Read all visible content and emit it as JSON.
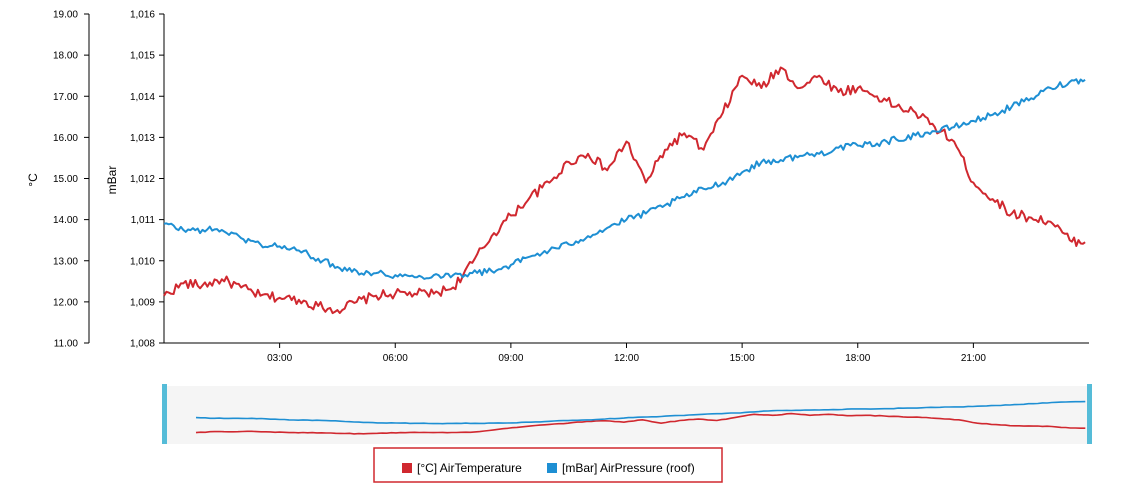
{
  "chart_data": {
    "type": "line",
    "x": {
      "label": "",
      "range_hours": [
        0,
        24
      ],
      "ticks": [
        {
          "h": 3,
          "label": "03:00"
        },
        {
          "h": 6,
          "label": "06:00"
        },
        {
          "h": 9,
          "label": "09:00"
        },
        {
          "h": 12,
          "label": "12:00"
        },
        {
          "h": 15,
          "label": "15:00"
        },
        {
          "h": 18,
          "label": "18:00"
        },
        {
          "h": 21,
          "label": "21:00"
        }
      ]
    },
    "y_left": {
      "label": "°C",
      "range": [
        11,
        19
      ],
      "ticks": [
        "11.00",
        "12.00",
        "13.00",
        "14.00",
        "15.00",
        "16.00",
        "17.00",
        "18.00",
        "19.00"
      ]
    },
    "y_right": {
      "label": "mBar",
      "range": [
        1008,
        1016
      ],
      "ticks": [
        "1,008",
        "1,009",
        "1,010",
        "1,011",
        "1,012",
        "1,013",
        "1,014",
        "1,015",
        "1,016"
      ]
    },
    "series": [
      {
        "name": "[°C] AirTemperature",
        "axis": "left",
        "color": "#d0282f",
        "points": [
          [
            0,
            12.15
          ],
          [
            0.5,
            12.45
          ],
          [
            1,
            12.4
          ],
          [
            1.5,
            12.55
          ],
          [
            2,
            12.35
          ],
          [
            2.5,
            12.15
          ],
          [
            3,
            12.1
          ],
          [
            3.5,
            12.05
          ],
          [
            4,
            11.9
          ],
          [
            4.5,
            11.8
          ],
          [
            5,
            12.0
          ],
          [
            5.5,
            12.15
          ],
          [
            6,
            12.2
          ],
          [
            6.5,
            12.2
          ],
          [
            7,
            12.2
          ],
          [
            7.5,
            12.35
          ],
          [
            8,
            12.95
          ],
          [
            8.5,
            13.6
          ],
          [
            9,
            14.1
          ],
          [
            9.5,
            14.55
          ],
          [
            10,
            14.9
          ],
          [
            10.5,
            15.4
          ],
          [
            11,
            15.6
          ],
          [
            11.5,
            15.2
          ],
          [
            12,
            15.9
          ],
          [
            12.5,
            14.9
          ],
          [
            13,
            15.7
          ],
          [
            13.5,
            16.1
          ],
          [
            14,
            15.7
          ],
          [
            14.5,
            16.6
          ],
          [
            15,
            17.5
          ],
          [
            15.5,
            17.2
          ],
          [
            16,
            17.7
          ],
          [
            16.5,
            17.2
          ],
          [
            17,
            17.5
          ],
          [
            17.5,
            17.1
          ],
          [
            18,
            17.2
          ],
          [
            18.5,
            17.0
          ],
          [
            19,
            16.75
          ],
          [
            19.5,
            16.6
          ],
          [
            20,
            16.25
          ],
          [
            20.5,
            15.9
          ],
          [
            21,
            14.9
          ],
          [
            21.5,
            14.5
          ],
          [
            22,
            14.15
          ],
          [
            22.5,
            14.05
          ],
          [
            23,
            13.95
          ],
          [
            23.5,
            13.5
          ],
          [
            23.9,
            13.45
          ]
        ]
      },
      {
        "name": "[mBar] AirPressure (roof)",
        "axis": "right",
        "color": "#1e8fd3",
        "points": [
          [
            0,
            1010.9
          ],
          [
            0.5,
            1010.75
          ],
          [
            1,
            1010.75
          ],
          [
            1.5,
            1010.75
          ],
          [
            2,
            1010.55
          ],
          [
            2.5,
            1010.4
          ],
          [
            3,
            1010.35
          ],
          [
            3.5,
            1010.25
          ],
          [
            4,
            1010.05
          ],
          [
            4.5,
            1009.85
          ],
          [
            5,
            1009.75
          ],
          [
            5.5,
            1009.7
          ],
          [
            6,
            1009.65
          ],
          [
            6.5,
            1009.6
          ],
          [
            7,
            1009.65
          ],
          [
            7.5,
            1009.65
          ],
          [
            8,
            1009.7
          ],
          [
            8.5,
            1009.75
          ],
          [
            9,
            1009.9
          ],
          [
            9.5,
            1010.1
          ],
          [
            10,
            1010.25
          ],
          [
            10.5,
            1010.4
          ],
          [
            11,
            1010.6
          ],
          [
            11.5,
            1010.8
          ],
          [
            12,
            1011.0
          ],
          [
            12.5,
            1011.15
          ],
          [
            13,
            1011.35
          ],
          [
            13.5,
            1011.55
          ],
          [
            14,
            1011.75
          ],
          [
            14.5,
            1011.9
          ],
          [
            15,
            1012.15
          ],
          [
            15.5,
            1012.4
          ],
          [
            16,
            1012.45
          ],
          [
            16.5,
            1012.55
          ],
          [
            17,
            1012.6
          ],
          [
            17.5,
            1012.75
          ],
          [
            18,
            1012.8
          ],
          [
            18.5,
            1012.85
          ],
          [
            19,
            1012.95
          ],
          [
            19.5,
            1013.05
          ],
          [
            20,
            1013.15
          ],
          [
            20.5,
            1013.25
          ],
          [
            21,
            1013.4
          ],
          [
            21.5,
            1013.55
          ],
          [
            22,
            1013.75
          ],
          [
            22.5,
            1013.95
          ],
          [
            23,
            1014.2
          ],
          [
            23.5,
            1014.35
          ],
          [
            23.9,
            1014.4
          ]
        ]
      }
    ]
  },
  "navigator": {
    "label": "range navigator"
  }
}
